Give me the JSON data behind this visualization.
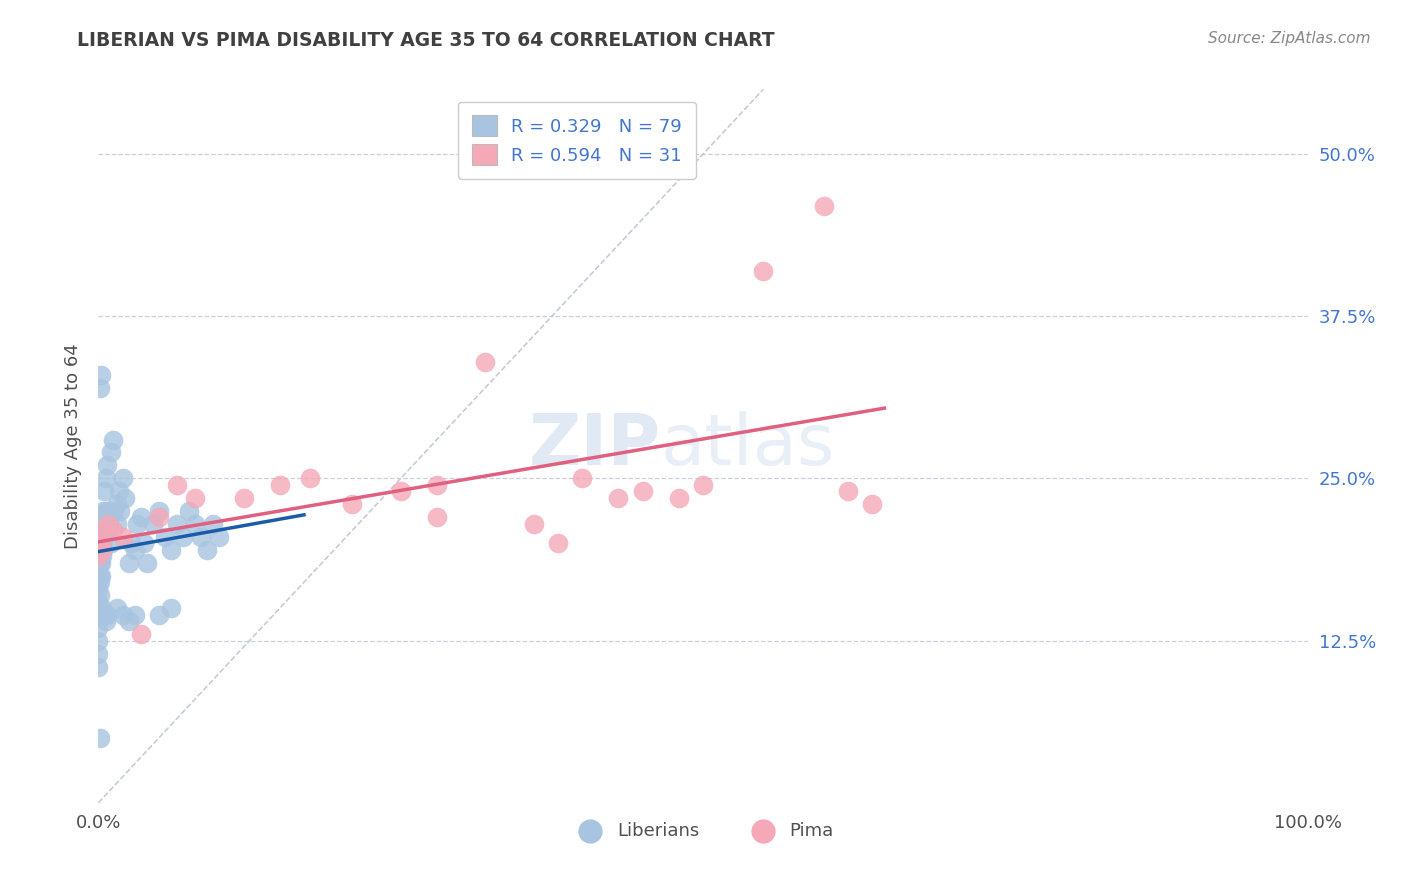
{
  "title": "LIBERIAN VS PIMA DISABILITY AGE 35 TO 64 CORRELATION CHART",
  "source": "Source: ZipAtlas.com",
  "ylabel": "Disability Age 35 to 64",
  "xlim": [
    0.0,
    1.0
  ],
  "ylim": [
    0.0,
    0.55
  ],
  "x_tick_labels": [
    "0.0%",
    "100.0%"
  ],
  "x_tick_vals": [
    0.0,
    1.0
  ],
  "y_tick_labels": [
    "12.5%",
    "25.0%",
    "37.5%",
    "50.0%"
  ],
  "y_tick_vals": [
    0.125,
    0.25,
    0.375,
    0.5
  ],
  "liberian_R": 0.329,
  "liberian_N": 79,
  "pima_R": 0.594,
  "pima_N": 31,
  "liberian_color": "#a8c4e0",
  "pima_color": "#f4a8b8",
  "liberian_line_color": "#1a5ca8",
  "pima_line_color": "#e06080",
  "diagonal_color": "#c0c8d8",
  "watermark_zip": "ZIP",
  "watermark_atlas": "atlas",
  "background_color": "#ffffff",
  "grid_color": "#c8d0e0",
  "title_color": "#404040",
  "legend_text_color": "#4477cc",
  "source_color": "#888888",
  "liberian_x": [
    0.0,
    0.0,
    0.0,
    0.0,
    0.0,
    0.0,
    0.0,
    0.0,
    0.001,
    0.001,
    0.001,
    0.001,
    0.001,
    0.001,
    0.002,
    0.002,
    0.002,
    0.002,
    0.003,
    0.003,
    0.003,
    0.003,
    0.004,
    0.004,
    0.004,
    0.005,
    0.005,
    0.005,
    0.006,
    0.006,
    0.006,
    0.007,
    0.007,
    0.008,
    0.008,
    0.009,
    0.009,
    0.01,
    0.01,
    0.012,
    0.013,
    0.015,
    0.015,
    0.017,
    0.018,
    0.02,
    0.022,
    0.025,
    0.027,
    0.03,
    0.032,
    0.035,
    0.038,
    0.04,
    0.045,
    0.05,
    0.055,
    0.06,
    0.065,
    0.07,
    0.075,
    0.08,
    0.085,
    0.09,
    0.095,
    0.1,
    0.003,
    0.004,
    0.006,
    0.007,
    0.015,
    0.02,
    0.025,
    0.03,
    0.001,
    0.002,
    0.05,
    0.06,
    0.001
  ],
  "liberian_y": [
    0.175,
    0.165,
    0.155,
    0.145,
    0.135,
    0.125,
    0.115,
    0.105,
    0.2,
    0.19,
    0.185,
    0.175,
    0.17,
    0.16,
    0.21,
    0.2,
    0.185,
    0.175,
    0.22,
    0.215,
    0.2,
    0.19,
    0.225,
    0.21,
    0.195,
    0.24,
    0.22,
    0.205,
    0.25,
    0.225,
    0.21,
    0.26,
    0.215,
    0.225,
    0.215,
    0.215,
    0.21,
    0.27,
    0.2,
    0.28,
    0.225,
    0.23,
    0.215,
    0.24,
    0.225,
    0.25,
    0.235,
    0.185,
    0.2,
    0.195,
    0.215,
    0.22,
    0.2,
    0.185,
    0.215,
    0.225,
    0.205,
    0.195,
    0.215,
    0.205,
    0.225,
    0.215,
    0.205,
    0.195,
    0.215,
    0.205,
    0.15,
    0.145,
    0.14,
    0.145,
    0.15,
    0.145,
    0.14,
    0.145,
    0.32,
    0.33,
    0.145,
    0.15,
    0.05
  ],
  "pima_x": [
    0.0,
    0.0,
    0.001,
    0.002,
    0.003,
    0.008,
    0.012,
    0.02,
    0.035,
    0.05,
    0.065,
    0.08,
    0.12,
    0.15,
    0.175,
    0.21,
    0.25,
    0.28,
    0.32,
    0.36,
    0.4,
    0.45,
    0.5,
    0.55,
    0.6,
    0.62,
    0.64,
    0.48,
    0.43,
    0.38,
    0.28
  ],
  "pima_y": [
    0.2,
    0.19,
    0.21,
    0.2,
    0.195,
    0.215,
    0.21,
    0.205,
    0.13,
    0.22,
    0.245,
    0.235,
    0.235,
    0.245,
    0.25,
    0.23,
    0.24,
    0.245,
    0.34,
    0.215,
    0.25,
    0.24,
    0.245,
    0.41,
    0.46,
    0.24,
    0.23,
    0.235,
    0.235,
    0.2,
    0.22
  ]
}
